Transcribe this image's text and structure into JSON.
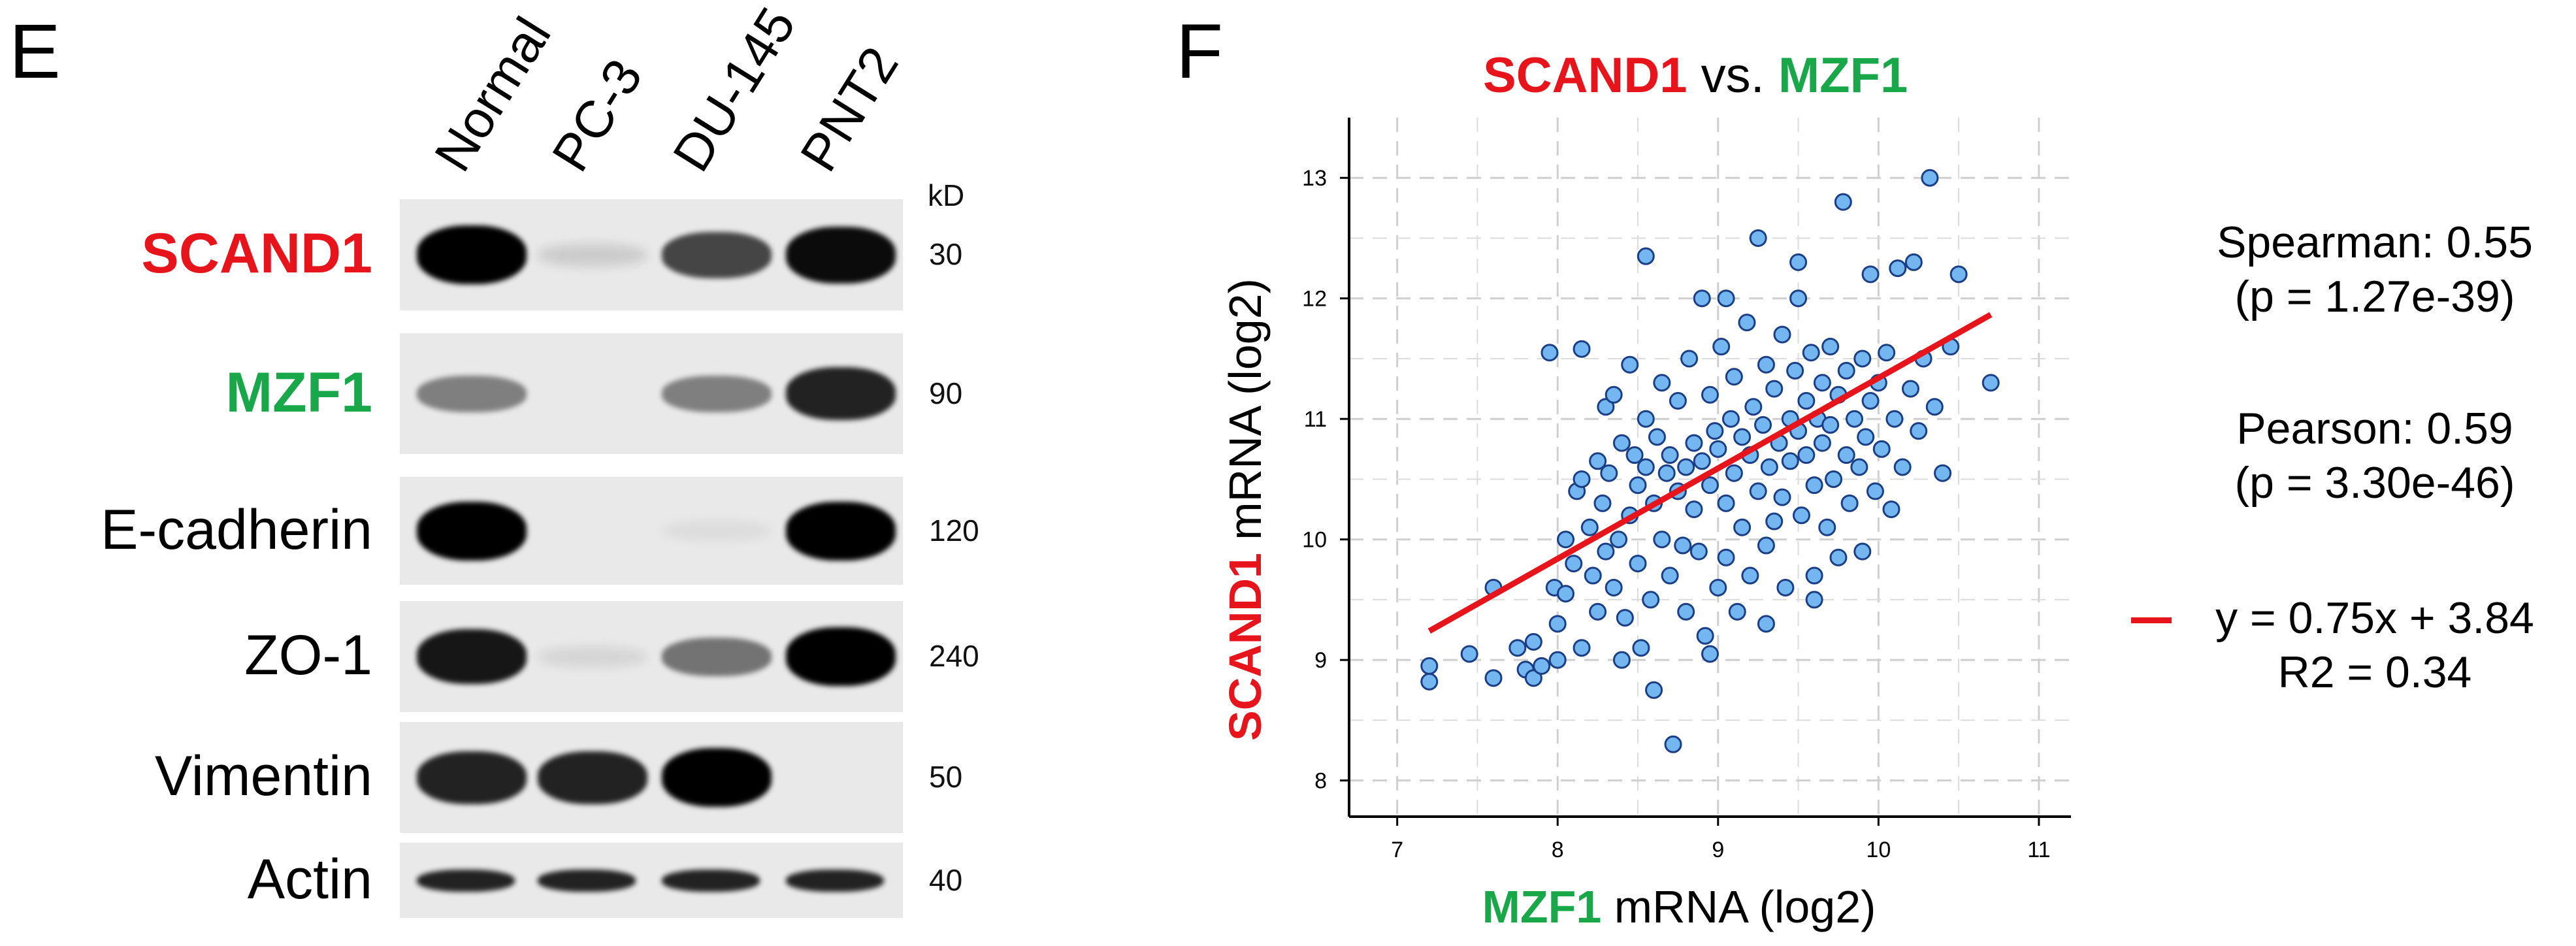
{
  "panel_e": {
    "letter": "E",
    "lanes": [
      "Normal",
      "PC-3",
      "DU-145",
      "PNT2"
    ],
    "kd_header": "kD",
    "rows": [
      {
        "protein": "SCAND1",
        "kd": "30",
        "band_intensity": [
          1.0,
          0.12,
          0.7,
          0.95
        ]
      },
      {
        "protein": "MZF1",
        "kd": "90",
        "band_intensity": [
          0.45,
          0.0,
          0.45,
          0.85
        ]
      },
      {
        "protein": "E-cadherin",
        "kd": "120",
        "band_intensity": [
          1.0,
          0.0,
          0.05,
          1.0
        ]
      },
      {
        "protein": "ZO-1",
        "kd": "240",
        "band_intensity": [
          0.9,
          0.08,
          0.5,
          1.0
        ]
      },
      {
        "protein": "Vimentin",
        "kd": "50",
        "band_intensity": [
          0.85,
          0.85,
          1.0,
          0.0
        ]
      },
      {
        "protein": "Actin",
        "kd": "40",
        "band_intensity": [
          0.85,
          0.85,
          0.85,
          0.85
        ]
      }
    ]
  },
  "panel_f": {
    "letter": "F",
    "title_gene1": "SCAND1",
    "title_vs": " vs. ",
    "title_gene2": "MZF1",
    "stats": {
      "spearman": "Spearman: 0.55",
      "spearman_p": "(p = 1.27e-39)",
      "pearson": "Pearson: 0.59",
      "pearson_p": "(p = 3.30e-46)",
      "fit": "y = 0.75x + 3.84",
      "r2": "R2 = 0.34"
    }
  },
  "colors": {
    "red": "#e8141b",
    "green": "#18a84a",
    "point_fill": "#74b6ef",
    "point_stroke": "#1b3f86",
    "fit_line": "#e8141b"
  },
  "chart_data": {
    "type": "scatter",
    "title": "SCAND1 vs. MZF1",
    "xlabel_gene": "MZF1",
    "xlabel_rest": " mRNA (log2)",
    "ylabel_gene": "SCAND1",
    "ylabel_rest": " mRNA (log2)",
    "xlim": [
      6.7,
      11.2
    ],
    "ylim": [
      7.7,
      13.5
    ],
    "xticks": [
      7,
      8,
      9,
      10,
      11
    ],
    "yticks": [
      8,
      9,
      10,
      11,
      12,
      13
    ],
    "grid": true,
    "fit": {
      "slope": 0.75,
      "intercept": 3.84,
      "x_range": [
        7.2,
        10.7
      ]
    },
    "points": [
      [
        7.2,
        8.95
      ],
      [
        7.2,
        8.82
      ],
      [
        7.45,
        9.05
      ],
      [
        7.6,
        8.85
      ],
      [
        7.6,
        9.6
      ],
      [
        7.75,
        9.1
      ],
      [
        7.8,
        8.92
      ],
      [
        7.85,
        9.15
      ],
      [
        7.85,
        8.85
      ],
      [
        7.9,
        8.95
      ],
      [
        7.95,
        11.55
      ],
      [
        7.98,
        9.6
      ],
      [
        8.0,
        9.0
      ],
      [
        8.0,
        9.3
      ],
      [
        8.05,
        10.0
      ],
      [
        8.05,
        9.55
      ],
      [
        8.1,
        9.8
      ],
      [
        8.12,
        10.4
      ],
      [
        8.15,
        11.58
      ],
      [
        8.15,
        9.1
      ],
      [
        8.2,
        10.1
      ],
      [
        8.22,
        9.7
      ],
      [
        8.25,
        9.4
      ],
      [
        8.25,
        10.65
      ],
      [
        8.28,
        10.3
      ],
      [
        8.3,
        11.1
      ],
      [
        8.3,
        9.9
      ],
      [
        8.32,
        10.55
      ],
      [
        8.35,
        11.2
      ],
      [
        8.35,
        9.6
      ],
      [
        8.38,
        10.0
      ],
      [
        8.4,
        10.8
      ],
      [
        8.42,
        9.35
      ],
      [
        8.45,
        11.45
      ],
      [
        8.45,
        10.2
      ],
      [
        8.48,
        10.7
      ],
      [
        8.5,
        9.8
      ],
      [
        8.5,
        10.45
      ],
      [
        8.52,
        9.1
      ],
      [
        8.55,
        11.0
      ],
      [
        8.55,
        10.6
      ],
      [
        8.58,
        9.5
      ],
      [
        8.6,
        10.3
      ],
      [
        8.6,
        8.75
      ],
      [
        8.62,
        10.85
      ],
      [
        8.65,
        11.3
      ],
      [
        8.65,
        10.0
      ],
      [
        8.68,
        10.55
      ],
      [
        8.7,
        9.7
      ],
      [
        8.7,
        10.7
      ],
      [
        8.72,
        8.3
      ],
      [
        8.75,
        10.4
      ],
      [
        8.75,
        11.15
      ],
      [
        8.78,
        9.95
      ],
      [
        8.8,
        10.6
      ],
      [
        8.8,
        9.4
      ],
      [
        8.82,
        11.5
      ],
      [
        8.85,
        10.25
      ],
      [
        8.85,
        10.8
      ],
      [
        8.88,
        9.9
      ],
      [
        8.9,
        10.65
      ],
      [
        8.9,
        12.0
      ],
      [
        8.92,
        9.2
      ],
      [
        8.95,
        11.2
      ],
      [
        8.95,
        10.45
      ],
      [
        8.98,
        10.9
      ],
      [
        9.0,
        9.6
      ],
      [
        9.0,
        10.75
      ],
      [
        9.02,
        11.6
      ],
      [
        9.05,
        10.3
      ],
      [
        9.05,
        9.85
      ],
      [
        9.08,
        11.0
      ],
      [
        9.1,
        10.55
      ],
      [
        9.1,
        11.35
      ],
      [
        9.12,
        9.4
      ],
      [
        9.15,
        10.85
      ],
      [
        9.15,
        10.1
      ],
      [
        9.18,
        11.8
      ],
      [
        9.2,
        10.7
      ],
      [
        9.2,
        9.7
      ],
      [
        9.22,
        11.1
      ],
      [
        9.25,
        10.4
      ],
      [
        9.25,
        12.5
      ],
      [
        9.28,
        10.95
      ],
      [
        9.3,
        9.95
      ],
      [
        9.3,
        11.45
      ],
      [
        9.32,
        10.6
      ],
      [
        9.35,
        11.25
      ],
      [
        9.35,
        10.15
      ],
      [
        9.38,
        10.8
      ],
      [
        9.4,
        11.7
      ],
      [
        9.4,
        10.35
      ],
      [
        9.42,
        9.6
      ],
      [
        9.45,
        11.0
      ],
      [
        9.45,
        10.65
      ],
      [
        9.48,
        11.4
      ],
      [
        9.5,
        10.9
      ],
      [
        9.5,
        12.3
      ],
      [
        9.52,
        10.2
      ],
      [
        9.55,
        11.15
      ],
      [
        9.55,
        10.7
      ],
      [
        9.58,
        11.55
      ],
      [
        9.6,
        10.45
      ],
      [
        9.6,
        9.7
      ],
      [
        9.62,
        11.0
      ],
      [
        9.65,
        10.8
      ],
      [
        9.65,
        11.3
      ],
      [
        9.68,
        10.1
      ],
      [
        9.7,
        10.95
      ],
      [
        9.7,
        11.6
      ],
      [
        9.72,
        10.5
      ],
      [
        9.75,
        11.2
      ],
      [
        9.75,
        9.85
      ],
      [
        9.78,
        12.8
      ],
      [
        9.8,
        10.7
      ],
      [
        9.8,
        11.4
      ],
      [
        9.82,
        10.3
      ],
      [
        9.85,
        11.0
      ],
      [
        9.88,
        10.6
      ],
      [
        9.9,
        11.5
      ],
      [
        9.9,
        9.9
      ],
      [
        9.92,
        10.85
      ],
      [
        9.95,
        11.15
      ],
      [
        9.98,
        10.4
      ],
      [
        10.0,
        11.3
      ],
      [
        10.02,
        10.75
      ],
      [
        10.05,
        11.55
      ],
      [
        10.08,
        10.25
      ],
      [
        10.1,
        11.0
      ],
      [
        10.12,
        12.25
      ],
      [
        10.15,
        10.6
      ],
      [
        10.2,
        11.25
      ],
      [
        10.22,
        12.3
      ],
      [
        10.25,
        10.9
      ],
      [
        10.28,
        11.5
      ],
      [
        10.32,
        13.0
      ],
      [
        10.35,
        11.1
      ],
      [
        10.4,
        10.55
      ],
      [
        10.45,
        11.6
      ],
      [
        10.5,
        12.2
      ],
      [
        10.7,
        11.3
      ],
      [
        9.3,
        9.3
      ],
      [
        8.95,
        9.05
      ],
      [
        9.6,
        9.5
      ],
      [
        8.4,
        9.0
      ],
      [
        9.05,
        12.0
      ],
      [
        8.55,
        12.35
      ],
      [
        9.5,
        12.0
      ],
      [
        9.95,
        12.2
      ],
      [
        8.15,
        10.5
      ]
    ]
  }
}
